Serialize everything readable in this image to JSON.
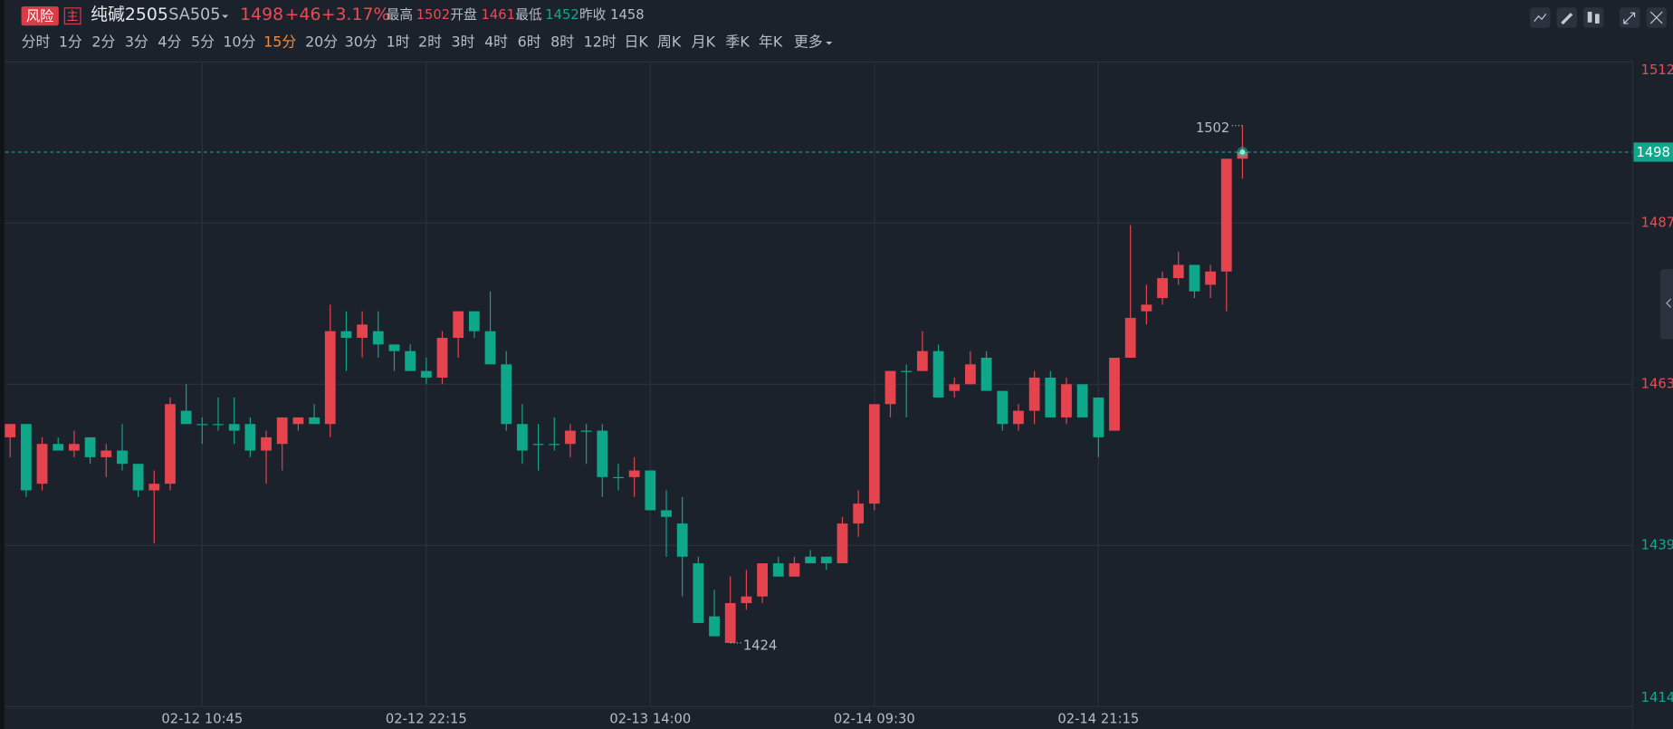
{
  "header": {
    "risk_badge": "风险",
    "main_badge": "主",
    "name": "纯碱2505",
    "code": "SA505",
    "price": 1498,
    "change": "+46",
    "change_pct": "+3.17%",
    "high_label": "最高",
    "high": 1502,
    "open_label": "开盘",
    "open": 1461,
    "low_label": "最低",
    "low": 1452,
    "prev_close_label": "昨收",
    "prev_close": 1458
  },
  "periods": [
    "分时",
    "1分",
    "2分",
    "3分",
    "4分",
    "5分",
    "10分",
    "15分",
    "20分",
    "30分",
    "1时",
    "2时",
    "3时",
    "4时",
    "6时",
    "8时",
    "12时",
    "日K",
    "周K",
    "月K",
    "季K",
    "年K",
    "更多"
  ],
  "active_period_index": 7,
  "chart_data": {
    "type": "candlestick",
    "categories": [
      null,
      null,
      null,
      null,
      null,
      null,
      null,
      null,
      null,
      null,
      null,
      null,
      "02-12 10:45",
      null,
      null,
      null,
      null,
      null,
      null,
      null,
      null,
      null,
      null,
      null,
      null,
      null,
      "02-12 22:15",
      null,
      null,
      null,
      null,
      null,
      null,
      null,
      null,
      null,
      null,
      null,
      null,
      null,
      "02-13 14:00",
      null,
      null,
      null,
      null,
      null,
      null,
      null,
      null,
      null,
      null,
      null,
      null,
      null,
      "02-14 09:30",
      null,
      null,
      null,
      null,
      null,
      null,
      null,
      null,
      null,
      null,
      null,
      null,
      null,
      "02-14 21:15",
      null,
      null,
      null,
      null,
      null,
      null,
      null,
      null,
      null
    ],
    "open": [
      1455,
      1457,
      1448,
      1454,
      1453,
      1455,
      1452,
      1453,
      1451,
      1447,
      1448,
      1459,
      1457,
      1457,
      1457,
      1457,
      1453,
      1454,
      1457,
      1458,
      1457,
      1471,
      1470,
      1471,
      1469,
      1468,
      1465,
      1464,
      1470,
      1474,
      1471,
      1466,
      1457,
      1454,
      1454,
      1454,
      1456,
      1456,
      1449,
      1449,
      1450,
      1444,
      1442,
      1436,
      1428,
      1424,
      1430,
      1431,
      1436,
      1434,
      1437,
      1437,
      1436,
      1442,
      1445,
      1460,
      1465,
      1465,
      1468,
      1462,
      1463,
      1467,
      1462,
      1457,
      1459,
      1464,
      1458,
      1463,
      1461,
      1456,
      1467,
      1474,
      1476,
      1479,
      1481,
      1478,
      1480,
      1497
    ],
    "high": [
      1457,
      1457,
      1455,
      1455,
      1456,
      1455,
      1454,
      1457,
      1451,
      1450,
      1461,
      1463,
      1458,
      1461,
      1461,
      1458,
      1456,
      1458,
      1458,
      1460,
      1475,
      1474,
      1474,
      1474,
      1469,
      1469,
      1467,
      1471,
      1474,
      1474,
      1477,
      1468,
      1460,
      1457,
      1458,
      1457,
      1457,
      1457,
      1451,
      1452,
      1450,
      1447,
      1446,
      1437,
      1432,
      1434,
      1435,
      1436,
      1437,
      1437,
      1438,
      1437,
      1443,
      1447,
      1460,
      1465,
      1466,
      1471,
      1469,
      1464,
      1468,
      1468,
      1462,
      1460,
      1465,
      1465,
      1464,
      1463,
      1461,
      1467,
      1487,
      1478,
      1480,
      1483,
      1481,
      1481,
      1497,
      1502
    ],
    "low": [
      1452,
      1446,
      1447,
      1453,
      1452,
      1451,
      1449,
      1450,
      1446,
      1439,
      1447,
      1457,
      1454,
      1456,
      1454,
      1452,
      1448,
      1450,
      1456,
      1457,
      1455,
      1465,
      1467,
      1467,
      1465,
      1465,
      1463,
      1463,
      1467,
      1470,
      1466,
      1456,
      1451,
      1450,
      1453,
      1452,
      1451,
      1446,
      1447,
      1446,
      1444,
      1437,
      1431,
      1427,
      1425,
      1424,
      1429,
      1430,
      1434,
      1434,
      1436,
      1435,
      1436,
      1440,
      1444,
      1458,
      1458,
      1465,
      1461,
      1461,
      1463,
      1462,
      1456,
      1456,
      1457,
      1458,
      1457,
      1458,
      1452,
      1456,
      1467,
      1472,
      1475,
      1478,
      1476,
      1476,
      1474,
      1494
    ],
    "close": [
      1457,
      1447,
      1454,
      1453,
      1454,
      1452,
      1453,
      1451,
      1447,
      1448,
      1460,
      1457,
      1457,
      1457,
      1456,
      1453,
      1455,
      1458,
      1458,
      1457,
      1471,
      1470,
      1472,
      1469,
      1468,
      1465,
      1464,
      1470,
      1474,
      1471,
      1466,
      1457,
      1453,
      1454,
      1454,
      1456,
      1456,
      1449,
      1449,
      1450,
      1444,
      1443,
      1437,
      1427,
      1425,
      1430,
      1431,
      1436,
      1434,
      1436,
      1436,
      1436,
      1442,
      1445,
      1460,
      1465,
      1465,
      1468,
      1461,
      1463,
      1466,
      1462,
      1457,
      1459,
      1464,
      1458,
      1463,
      1458,
      1455,
      1467,
      1473,
      1475,
      1479,
      1481,
      1477,
      1480,
      1497,
      1498
    ],
    "up_color": "#e5444f",
    "down_color": "#0fa78a",
    "ylim": [
      1414.4,
      1511.6
    ],
    "yticks": [
      {
        "value": 1414.4,
        "label": "1414"
      },
      {
        "value": 1438.7,
        "label": "1439"
      },
      1463,
      {
        "value": 1487.3,
        "label": "1487"
      },
      {
        "value": 1511.6,
        "label": "1512"
      }
    ],
    "grid": true,
    "max_label": 1502,
    "min_label": 1424,
    "last_price": 1498
  }
}
